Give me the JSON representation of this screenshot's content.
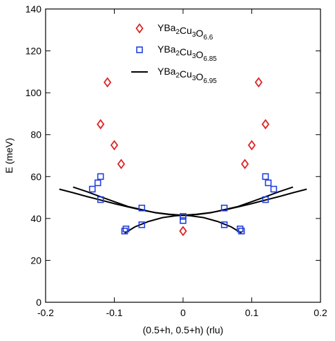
{
  "chart_data": {
    "type": "scatter",
    "title": "",
    "xlabel": "(0.5+h, 0.5+h)  (rlu)",
    "ylabel": "E  (meV)",
    "xlim": [
      -0.2,
      0.2
    ],
    "ylim": [
      0,
      140
    ],
    "x_ticks": [
      "-0.2",
      "-0.1",
      "0",
      "0.1",
      "0.2"
    ],
    "x_tick_values": [
      -0.2,
      -0.1,
      0,
      0.1,
      0.2
    ],
    "y_ticks": [
      "0",
      "20",
      "40",
      "60",
      "80",
      "100",
      "120",
      "140"
    ],
    "y_tick_values": [
      0,
      20,
      40,
      60,
      80,
      100,
      120,
      140
    ],
    "legend_placement": "top-right",
    "series": [
      {
        "name": "YBa2Cu3O6.6",
        "name_parts": [
          [
            "YBa",
            false
          ],
          [
            "2",
            true
          ],
          [
            "Cu",
            false
          ],
          [
            "3",
            true
          ],
          [
            "O",
            false
          ],
          [
            "6.6",
            true
          ]
        ],
        "marker": "diamond",
        "color": "#e02020",
        "points": [
          [
            -0.11,
            105
          ],
          [
            -0.12,
            85
          ],
          [
            -0.1,
            75
          ],
          [
            -0.09,
            66
          ],
          [
            0.0,
            34
          ],
          [
            0.09,
            66
          ],
          [
            0.1,
            75
          ],
          [
            0.12,
            85
          ],
          [
            0.11,
            105
          ]
        ]
      },
      {
        "name": "YBa2Cu3O6.85",
        "name_parts": [
          [
            "YBa",
            false
          ],
          [
            "2",
            true
          ],
          [
            "Cu",
            false
          ],
          [
            "3",
            true
          ],
          [
            "O",
            false
          ],
          [
            "6.85",
            true
          ]
        ],
        "marker": "square",
        "color": "#2040e0",
        "points": [
          [
            -0.12,
            60
          ],
          [
            -0.124,
            57
          ],
          [
            -0.132,
            54
          ],
          [
            -0.12,
            49
          ],
          [
            -0.085,
            34
          ],
          [
            -0.083,
            35
          ],
          [
            -0.06,
            45
          ],
          [
            -0.06,
            37
          ],
          [
            0.0,
            41
          ],
          [
            0.0,
            39
          ],
          [
            0.06,
            45
          ],
          [
            0.06,
            37
          ],
          [
            0.083,
            35
          ],
          [
            0.085,
            34
          ],
          [
            0.12,
            49
          ],
          [
            0.132,
            54
          ],
          [
            0.124,
            57
          ],
          [
            0.12,
            60
          ]
        ]
      },
      {
        "name": "YBa2Cu3O6.95",
        "name_parts": [
          [
            "YBa",
            false
          ],
          [
            "2",
            true
          ],
          [
            "Cu",
            false
          ],
          [
            "3",
            true
          ],
          [
            "O",
            false
          ],
          [
            "6.95",
            true
          ]
        ],
        "marker": "line",
        "color": "#000000",
        "curves": [
          [
            [
              -0.18,
              54
            ],
            [
              -0.16,
              52.3
            ],
            [
              -0.14,
              50.5
            ],
            [
              -0.12,
              48.8
            ],
            [
              -0.1,
              47.1
            ],
            [
              -0.08,
              45.5
            ],
            [
              -0.06,
              44
            ],
            [
              -0.04,
              42.8
            ],
            [
              -0.02,
              42
            ],
            [
              0.0,
              41.5
            ],
            [
              0.02,
              42
            ],
            [
              0.04,
              42.8
            ],
            [
              0.06,
              44
            ],
            [
              0.08,
              45.5
            ],
            [
              0.1,
              47.1
            ],
            [
              0.12,
              48.8
            ],
            [
              0.14,
              50.5
            ],
            [
              0.16,
              52.3
            ],
            [
              0.18,
              54
            ]
          ],
          [
            [
              -0.16,
              55
            ],
            [
              -0.14,
              52.8
            ],
            [
              -0.12,
              50.4
            ],
            [
              -0.1,
              48
            ],
            [
              -0.08,
              45.7
            ],
            [
              -0.06,
              44.2
            ],
            [
              -0.04,
              42.7
            ],
            [
              -0.02,
              41.9
            ],
            [
              0.0,
              41.5
            ],
            [
              0.02,
              41.9
            ],
            [
              0.04,
              42.7
            ],
            [
              0.06,
              44.2
            ],
            [
              0.08,
              45.7
            ],
            [
              0.1,
              48
            ],
            [
              0.12,
              50.4
            ],
            [
              0.14,
              52.8
            ],
            [
              0.16,
              55
            ]
          ],
          [
            [
              -0.085,
              33
            ],
            [
              -0.07,
              36
            ],
            [
              -0.05,
              38.6
            ],
            [
              -0.03,
              40.4
            ],
            [
              -0.01,
              41.3
            ],
            [
              0.0,
              41.5
            ],
            [
              0.01,
              41.3
            ],
            [
              0.03,
              40.4
            ],
            [
              0.05,
              38.6
            ],
            [
              0.07,
              36
            ],
            [
              0.085,
              33
            ]
          ]
        ]
      }
    ]
  }
}
